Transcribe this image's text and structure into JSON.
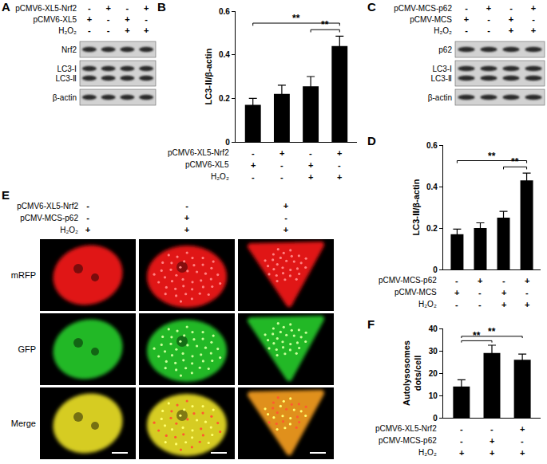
{
  "chart_data": [
    {
      "panel": "B",
      "type": "bar",
      "categories": [
        null,
        null,
        null,
        null
      ],
      "values": [
        0.17,
        0.22,
        0.255,
        0.44
      ],
      "errors": [
        0.03,
        0.04,
        0.045,
        0.045
      ],
      "color": "#000000",
      "ylabel": "LC3-Ⅱ/β-actin",
      "ylim": [
        0,
        0.6
      ],
      "yticks": [
        0,
        0.2,
        0.4,
        0.6
      ],
      "grid": false,
      "tick_labels": "y",
      "conditions": [
        {
          "label": "pCMV6-XL5-Nrf2",
          "signs": [
            "-",
            "+",
            "-",
            "+"
          ]
        },
        {
          "label": "pCMV6-XL5",
          "signs": [
            "+",
            "-",
            "+",
            "-"
          ]
        },
        {
          "label": "H₂O₂",
          "signs": [
            "-",
            "-",
            "+",
            "+"
          ]
        }
      ],
      "significance": [
        {
          "pair": [
            0,
            3
          ],
          "label": "**"
        },
        {
          "pair": [
            2,
            3
          ],
          "label": "**"
        }
      ]
    },
    {
      "panel": "D",
      "type": "bar",
      "categories": [
        null,
        null,
        null,
        null
      ],
      "values": [
        0.17,
        0.2,
        0.25,
        0.43
      ],
      "errors": [
        0.025,
        0.025,
        0.03,
        0.035
      ],
      "color": "#000000",
      "ylabel": "LC3-Ⅱ/β-actin",
      "ylim": [
        0,
        0.6
      ],
      "yticks": [
        0,
        0.2,
        0.4,
        0.6
      ],
      "grid": false,
      "tick_labels": "y",
      "conditions": [
        {
          "label": "pCMV-MCS-p62",
          "signs": [
            "-",
            "+",
            "-",
            "+"
          ]
        },
        {
          "label": "pCMV-MCS",
          "signs": [
            "+",
            "-",
            "+",
            "-"
          ]
        },
        {
          "label": "H₂O₂",
          "signs": [
            "-",
            "-",
            "+",
            "+"
          ]
        }
      ],
      "significance": [
        {
          "pair": [
            0,
            3
          ],
          "label": "**"
        },
        {
          "pair": [
            2,
            3
          ],
          "label": "**"
        }
      ]
    },
    {
      "panel": "F",
      "type": "bar",
      "categories": [
        null,
        null,
        null
      ],
      "values": [
        14,
        29,
        26
      ],
      "errors": [
        3,
        3.5,
        2.5
      ],
      "color": "#000000",
      "ylabel": [
        "Autolysosomes",
        "dots/cell"
      ],
      "ylim": [
        0,
        40
      ],
      "yticks": [
        0,
        10,
        20,
        30,
        40
      ],
      "grid": false,
      "tick_labels": "y",
      "conditions": [
        {
          "label": "pCMV6-XL5-Nrf2",
          "signs": [
            "-",
            "-",
            "+"
          ]
        },
        {
          "label": "pCMV-MCS-p62",
          "signs": [
            "-",
            "+",
            "-"
          ]
        },
        {
          "label": "H₂O₂",
          "signs": [
            "+",
            "+",
            "+"
          ]
        }
      ],
      "significance": [
        {
          "pair": [
            0,
            1
          ],
          "label": "**"
        },
        {
          "pair": [
            0,
            2
          ],
          "label": "**"
        }
      ]
    }
  ],
  "blots": [
    {
      "panel": "A",
      "conditions": [
        {
          "label": "pCMV6-XL5-Nrf2",
          "signs": [
            "-",
            "+",
            "-",
            "+"
          ]
        },
        {
          "label": "pCMV6-XL5",
          "signs": [
            "+",
            "-",
            "+",
            "-"
          ]
        },
        {
          "label": "H₂O₂",
          "signs": [
            "-",
            "-",
            "+",
            "+"
          ]
        }
      ],
      "bands": [
        [
          "Nrf2"
        ],
        [
          "LC3-Ⅰ",
          "LC3-Ⅱ"
        ],
        [
          "β-actin"
        ]
      ]
    },
    {
      "panel": "C",
      "conditions": [
        {
          "label": "pCMV-MCS-p62",
          "signs": [
            "-",
            "+",
            "-",
            "+"
          ]
        },
        {
          "label": "pCMV-MCS",
          "signs": [
            "+",
            "-",
            "+",
            "-"
          ]
        },
        {
          "label": "H₂O₂",
          "signs": [
            "-",
            "-",
            "+",
            "+"
          ]
        }
      ],
      "bands": [
        [
          "p62"
        ],
        [
          "LC3-Ⅰ",
          "LC3-Ⅱ"
        ],
        [
          "β-actin"
        ]
      ]
    }
  ],
  "images": {
    "panel": "E",
    "conditions": [
      {
        "label": "pCMV6-XL5-Nrf2",
        "signs": [
          "-",
          "-",
          "+"
        ]
      },
      {
        "label": "pCMV-MCS-p62",
        "signs": [
          "-",
          "+",
          "-"
        ]
      },
      {
        "label": "H₂O₂",
        "signs": [
          "+",
          "+",
          "+"
        ]
      }
    ],
    "channels": [
      "mRFP",
      "GFP",
      "Merge"
    ]
  }
}
